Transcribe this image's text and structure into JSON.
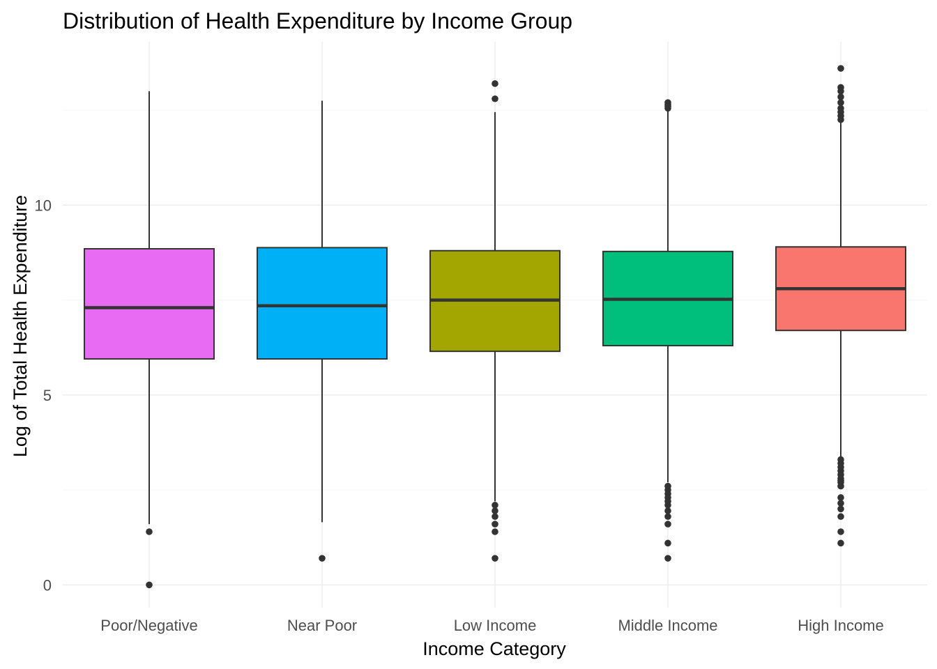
{
  "chart_data": {
    "type": "boxplot",
    "title": "Distribution of Health Expenditure by Income Group",
    "xlabel": "Income Category",
    "ylabel": "Log of Total Health Expenditure",
    "ylim": [
      -0.6,
      14.3
    ],
    "y_ticks": [
      0,
      5,
      10
    ],
    "y_tick_labels": [
      "0",
      "5",
      "10"
    ],
    "grid": true,
    "legend": "none",
    "categories": [
      "Poor/Negative",
      "Near Poor",
      "Low Income",
      "Middle Income",
      "High Income"
    ],
    "boxes": [
      {
        "category": "Poor/Negative",
        "color": "#E76BF3",
        "whisker_low": 1.6,
        "q1": 5.95,
        "median": 7.3,
        "q3": 8.85,
        "whisker_high": 13.0,
        "outliers": [
          1.4,
          0.0
        ]
      },
      {
        "category": "Near Poor",
        "color": "#00B0F6",
        "whisker_low": 1.65,
        "q1": 5.95,
        "median": 7.35,
        "q3": 8.88,
        "whisker_high": 12.75,
        "outliers": [
          0.7
        ]
      },
      {
        "category": "Low Income",
        "color": "#A3A500",
        "whisker_low": 2.2,
        "q1": 6.15,
        "median": 7.5,
        "q3": 8.8,
        "whisker_high": 12.45,
        "outliers": [
          13.2,
          12.8,
          2.1,
          1.95,
          1.8,
          1.6,
          1.4,
          0.7
        ]
      },
      {
        "category": "Middle Income",
        "color": "#00BF7D",
        "whisker_low": 2.7,
        "q1": 6.3,
        "median": 7.52,
        "q3": 8.78,
        "whisker_high": 12.5,
        "outliers": [
          12.7,
          12.65,
          12.6,
          12.55,
          2.6,
          2.5,
          2.4,
          2.3,
          2.2,
          2.1,
          1.95,
          1.8,
          1.6,
          1.1,
          0.7
        ]
      },
      {
        "category": "High Income",
        "color": "#F8766D",
        "whisker_low": 3.35,
        "q1": 6.7,
        "median": 7.8,
        "q3": 8.9,
        "whisker_high": 12.2,
        "outliers": [
          13.6,
          13.1,
          13.0,
          12.85,
          12.7,
          12.55,
          12.45,
          12.35,
          12.25,
          3.3,
          3.2,
          3.1,
          3.0,
          2.9,
          2.8,
          2.75,
          2.7,
          2.6,
          2.3,
          2.15,
          2.0,
          1.8,
          1.4,
          1.1
        ]
      }
    ]
  }
}
